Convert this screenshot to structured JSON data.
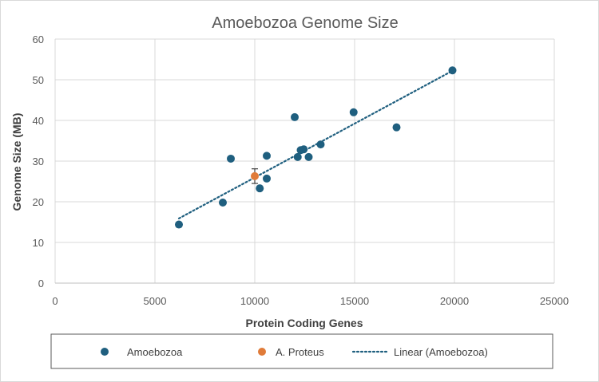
{
  "chart_data": {
    "type": "scatter",
    "title": "Amoebozoa Genome Size",
    "xlabel": "Protein Coding Genes",
    "ylabel": "Genome Size  (MB)",
    "xlim": [
      0,
      25000
    ],
    "ylim": [
      0,
      60
    ],
    "x_ticks": [
      0,
      5000,
      10000,
      15000,
      20000,
      25000
    ],
    "y_ticks": [
      0,
      10,
      20,
      30,
      40,
      50,
      60
    ],
    "x_tick_labels": [
      "0",
      "5000",
      "10000",
      "15000",
      "20000",
      "25000"
    ],
    "y_tick_labels": [
      "0",
      "10",
      "20",
      "30",
      "40",
      "50",
      "60"
    ],
    "grid": true,
    "legend_position": "bottom",
    "series": [
      {
        "name": "Amoebozoa",
        "color": "#1f5f7f",
        "points": [
          {
            "x": 6200,
            "y": 14.4
          },
          {
            "x": 8400,
            "y": 19.8
          },
          {
            "x": 8800,
            "y": 30.6
          },
          {
            "x": 10250,
            "y": 23.3
          },
          {
            "x": 10600,
            "y": 25.7
          },
          {
            "x": 10600,
            "y": 31.3
          },
          {
            "x": 12000,
            "y": 40.8
          },
          {
            "x": 12150,
            "y": 31.0
          },
          {
            "x": 12300,
            "y": 32.7
          },
          {
            "x": 12450,
            "y": 32.9
          },
          {
            "x": 12700,
            "y": 31.0
          },
          {
            "x": 13300,
            "y": 34.1
          },
          {
            "x": 14950,
            "y": 42.0
          },
          {
            "x": 17100,
            "y": 38.3
          },
          {
            "x": 19900,
            "y": 52.3
          }
        ]
      },
      {
        "name": "A. Proteus",
        "color": "#e07b39",
        "points": [
          {
            "x": 10000,
            "y": 26.3,
            "err_low": 24.5,
            "err_high": 28.1
          }
        ]
      }
    ],
    "trendline": {
      "name": "Linear (Amoebozoa)",
      "type": "linear",
      "color": "#1f5f7f",
      "x_start": 6200,
      "y_start": 15.9,
      "x_end": 19900,
      "y_end": 52.2
    },
    "legend": [
      {
        "label": "Amoebozoa",
        "marker": "dot",
        "color": "#1f5f7f"
      },
      {
        "label": "A. Proteus",
        "marker": "dot",
        "color": "#e07b39"
      },
      {
        "label": "Linear (Amoebozoa)",
        "marker": "dotted-line",
        "color": "#1f5f7f"
      }
    ]
  }
}
